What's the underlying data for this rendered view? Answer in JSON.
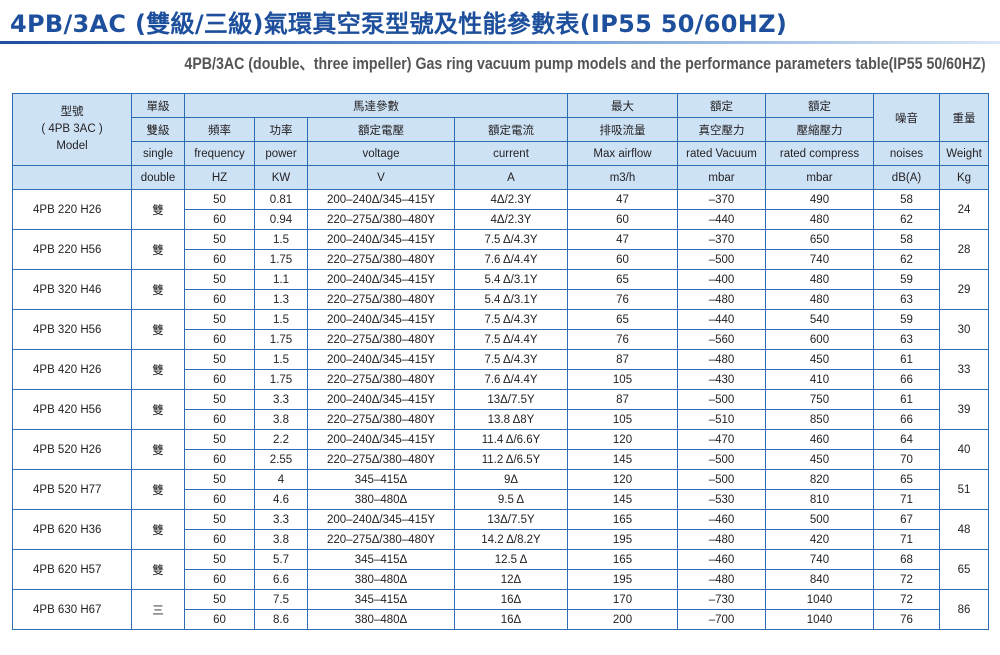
{
  "title": "4PB/3AC (雙級/三級)氣環真空泵型號及性能參數表(IP55 50/60HZ)",
  "subtitle": "4PB/3AC (double、three impeller) Gas ring vacuum pump models and the performance parameters table(IP55 50/60HZ)",
  "colors": {
    "title": "#1d4f9c",
    "header_bg": "#cde2f5",
    "border": "#2e6db4"
  },
  "header": {
    "model_zh": "型號",
    "model_code": "( 4PB 3AC )",
    "model_en": "Model",
    "stage_zh": "單級",
    "stage_zh2": "雙級",
    "stage_en1": "single",
    "stage_en2": "double",
    "motor_params": "馬達參數",
    "freq_zh": "頻率",
    "freq_en": "frequency",
    "freq_unit": "HZ",
    "power_zh": "功率",
    "power_en": "power",
    "power_unit": "KW",
    "voltage_zh": "額定電壓",
    "voltage_en": "voltage",
    "voltage_unit": "V",
    "current_zh": "額定電流",
    "current_en": "current",
    "current_unit": "A",
    "airflow_zh1": "最大",
    "airflow_zh2": "排吸流量",
    "airflow_en": "Max airflow",
    "airflow_unit": "m3/h",
    "vacuum_zh1": "額定",
    "vacuum_zh2": "真空壓力",
    "vacuum_en": "rated Vacuum",
    "vacuum_unit": "mbar",
    "compress_zh1": "額定",
    "compress_zh2": "壓縮壓力",
    "compress_en": "rated compress",
    "compress_unit": "mbar",
    "noise_zh": "噪音",
    "noise_en": "noises",
    "noise_unit": "dB(A)",
    "weight_zh": "重量",
    "weight_en": "Weight",
    "weight_unit": "Kg"
  },
  "models": [
    {
      "model": "4PB 220 H26",
      "stage": "雙",
      "weight": "24",
      "rows": [
        {
          "freq": "50",
          "power": "0.81",
          "voltage": "200–240Δ/345–415Y",
          "current": "4Δ/2.3Y",
          "airflow": "47",
          "vacuum": "–370",
          "compress": "490",
          "noise": "58"
        },
        {
          "freq": "60",
          "power": "0.94",
          "voltage": "220–275Δ/380–480Y",
          "current": "4Δ/2.3Y",
          "airflow": "60",
          "vacuum": "–440",
          "compress": "480",
          "noise": "62"
        }
      ]
    },
    {
      "model": "4PB 220 H56",
      "stage": "雙",
      "weight": "28",
      "rows": [
        {
          "freq": "50",
          "power": "1.5",
          "voltage": "200–240Δ/345–415Y",
          "current": "7.5 Δ/4.3Y",
          "airflow": "47",
          "vacuum": "–370",
          "compress": "650",
          "noise": "58"
        },
        {
          "freq": "60",
          "power": "1.75",
          "voltage": "220–275Δ/380–480Y",
          "current": "7.6 Δ/4.4Y",
          "airflow": "60",
          "vacuum": "–500",
          "compress": "740",
          "noise": "62"
        }
      ]
    },
    {
      "model": "4PB 320 H46",
      "stage": "雙",
      "weight": "29",
      "rows": [
        {
          "freq": "50",
          "power": "1.1",
          "voltage": "200–240Δ/345–415Y",
          "current": "5.4 Δ/3.1Y",
          "airflow": "65",
          "vacuum": "–400",
          "compress": "480",
          "noise": "59"
        },
        {
          "freq": "60",
          "power": "1.3",
          "voltage": "220–275Δ/380–480Y",
          "current": "5.4 Δ/3.1Y",
          "airflow": "76",
          "vacuum": "–480",
          "compress": "480",
          "noise": "63"
        }
      ]
    },
    {
      "model": "4PB 320 H56",
      "stage": "雙",
      "weight": "30",
      "rows": [
        {
          "freq": "50",
          "power": "1.5",
          "voltage": "200–240Δ/345–415Y",
          "current": "7.5 Δ/4.3Y",
          "airflow": "65",
          "vacuum": "–440",
          "compress": "540",
          "noise": "59"
        },
        {
          "freq": "60",
          "power": "1.75",
          "voltage": "220–275Δ/380–480Y",
          "current": "7.5 Δ/4.4Y",
          "airflow": "76",
          "vacuum": "–560",
          "compress": "600",
          "noise": "63"
        }
      ]
    },
    {
      "model": "4PB 420 H26",
      "stage": "雙",
      "weight": "33",
      "rows": [
        {
          "freq": "50",
          "power": "1.5",
          "voltage": "200–240Δ/345–415Y",
          "current": "7.5 Δ/4.3Y",
          "airflow": "87",
          "vacuum": "–480",
          "compress": "450",
          "noise": "61"
        },
        {
          "freq": "60",
          "power": "1.75",
          "voltage": "220–275Δ/380–480Y",
          "current": "7.6 Δ/4.4Y",
          "airflow": "105",
          "vacuum": "–430",
          "compress": "410",
          "noise": "66"
        }
      ]
    },
    {
      "model": "4PB 420 H56",
      "stage": "雙",
      "weight": "39",
      "rows": [
        {
          "freq": "50",
          "power": "3.3",
          "voltage": "200–240Δ/345–415Y",
          "current": "13Δ/7.5Y",
          "airflow": "87",
          "vacuum": "–500",
          "compress": "750",
          "noise": "61"
        },
        {
          "freq": "60",
          "power": "3.8",
          "voltage": "220–275Δ/380–480Y",
          "current": "13.8 Δ8Y",
          "airflow": "105",
          "vacuum": "–510",
          "compress": "850",
          "noise": "66"
        }
      ]
    },
    {
      "model": "4PB 520 H26",
      "stage": "雙",
      "weight": "40",
      "rows": [
        {
          "freq": "50",
          "power": "2.2",
          "voltage": "200–240Δ/345–415Y",
          "current": "11.4 Δ/6.6Y",
          "airflow": "120",
          "vacuum": "–470",
          "compress": "460",
          "noise": "64"
        },
        {
          "freq": "60",
          "power": "2.55",
          "voltage": "220–275Δ/380–480Y",
          "current": "11.2 Δ/6.5Y",
          "airflow": "145",
          "vacuum": "–500",
          "compress": "450",
          "noise": "70"
        }
      ]
    },
    {
      "model": "4PB 520 H77",
      "stage": "雙",
      "weight": "51",
      "rows": [
        {
          "freq": "50",
          "power": "4",
          "voltage": "345–415Δ",
          "current": "9Δ",
          "airflow": "120",
          "vacuum": "–500",
          "compress": "820",
          "noise": "65"
        },
        {
          "freq": "60",
          "power": "4.6",
          "voltage": "380–480Δ",
          "current": "9.5 Δ",
          "airflow": "145",
          "vacuum": "–530",
          "compress": "810",
          "noise": "71"
        }
      ]
    },
    {
      "model": "4PB 620 H36",
      "stage": "雙",
      "weight": "48",
      "rows": [
        {
          "freq": "50",
          "power": "3.3",
          "voltage": "200–240Δ/345–415Y",
          "current": "13Δ/7.5Y",
          "airflow": "165",
          "vacuum": "–460",
          "compress": "500",
          "noise": "67"
        },
        {
          "freq": "60",
          "power": "3.8",
          "voltage": "220–275Δ/380–480Y",
          "current": "14.2 Δ/8.2Y",
          "airflow": "195",
          "vacuum": "–480",
          "compress": "420",
          "noise": "71"
        }
      ]
    },
    {
      "model": "4PB 620 H57",
      "stage": "雙",
      "weight": "65",
      "rows": [
        {
          "freq": "50",
          "power": "5.7",
          "voltage": "345–415Δ",
          "current": "12.5 Δ",
          "airflow": "165",
          "vacuum": "–460",
          "compress": "740",
          "noise": "68"
        },
        {
          "freq": "60",
          "power": "6.6",
          "voltage": "380–480Δ",
          "current": "12Δ",
          "airflow": "195",
          "vacuum": "–480",
          "compress": "840",
          "noise": "72"
        }
      ]
    },
    {
      "model": "4PB 630 H67",
      "stage": "三",
      "weight": "86",
      "rows": [
        {
          "freq": "50",
          "power": "7.5",
          "voltage": "345–415Δ",
          "current": "16Δ",
          "airflow": "170",
          "vacuum": "–730",
          "compress": "1040",
          "noise": "72"
        },
        {
          "freq": "60",
          "power": "8.6",
          "voltage": "380–480Δ",
          "current": "16Δ",
          "airflow": "200",
          "vacuum": "–700",
          "compress": "1040",
          "noise": "76"
        }
      ]
    }
  ]
}
